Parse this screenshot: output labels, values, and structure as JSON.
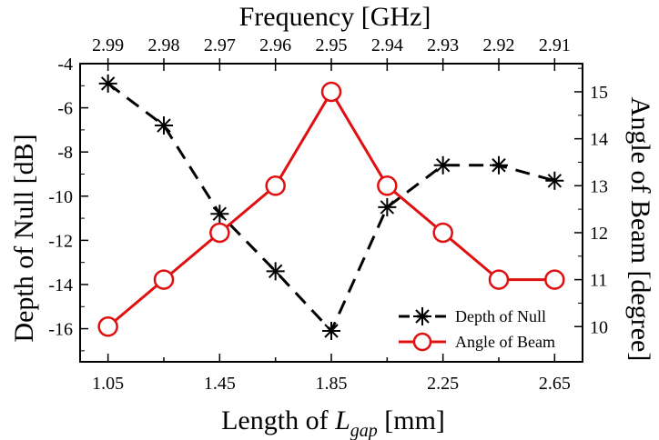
{
  "chart_data": {
    "type": "line",
    "x": [
      1.05,
      1.25,
      1.45,
      1.65,
      1.85,
      2.05,
      2.25,
      2.45,
      2.65
    ],
    "xlabel_prefix": "Length of ",
    "xlabel_var": "L",
    "xlabel_sub": "gap",
    "xlabel_suffix": " [mm]",
    "x_ticks": [
      "1.05",
      "1.45",
      "1.85",
      "2.25",
      "2.65"
    ],
    "xlim": [
      0.95,
      2.75
    ],
    "top_axis": {
      "label": "Frequency [GHz]",
      "ticks": [
        "2.99",
        "2.98",
        "2.97",
        "2.96",
        "2.95",
        "2.94",
        "2.93",
        "2.92",
        "2.91"
      ]
    },
    "left_axis": {
      "label": "Depth of Null [dB]",
      "ylim": [
        -17.5,
        -4
      ],
      "ticks": [
        "-4",
        "-6",
        "-8",
        "-10",
        "-12",
        "-14",
        "-16"
      ],
      "tick_values": [
        -4,
        -6,
        -8,
        -10,
        -12,
        -14,
        -16
      ]
    },
    "right_axis": {
      "label": "Angle of Beam [degree]",
      "ylim": [
        9.25,
        15.6
      ],
      "ticks": [
        "10",
        "11",
        "12",
        "13",
        "14",
        "15"
      ],
      "tick_values": [
        10,
        11,
        12,
        13,
        14,
        15
      ]
    },
    "series": [
      {
        "name": "Depth of Null",
        "axis": "left",
        "color": "#000000",
        "line_style": "dashed",
        "marker": "asterisk",
        "values": [
          -4.9,
          -6.8,
          -10.8,
          -13.4,
          -16.1,
          -10.5,
          -8.6,
          -8.6,
          -9.3
        ]
      },
      {
        "name": "Angle of Beam",
        "axis": "right",
        "color": "#e01010",
        "line_style": "solid",
        "marker": "open-circle",
        "values": [
          10,
          11,
          12,
          13,
          15,
          13,
          12,
          11,
          11
        ]
      }
    ],
    "legend": {
      "position": "bottom-right",
      "entries": [
        "Depth of Null",
        "Angle of Beam"
      ]
    }
  }
}
